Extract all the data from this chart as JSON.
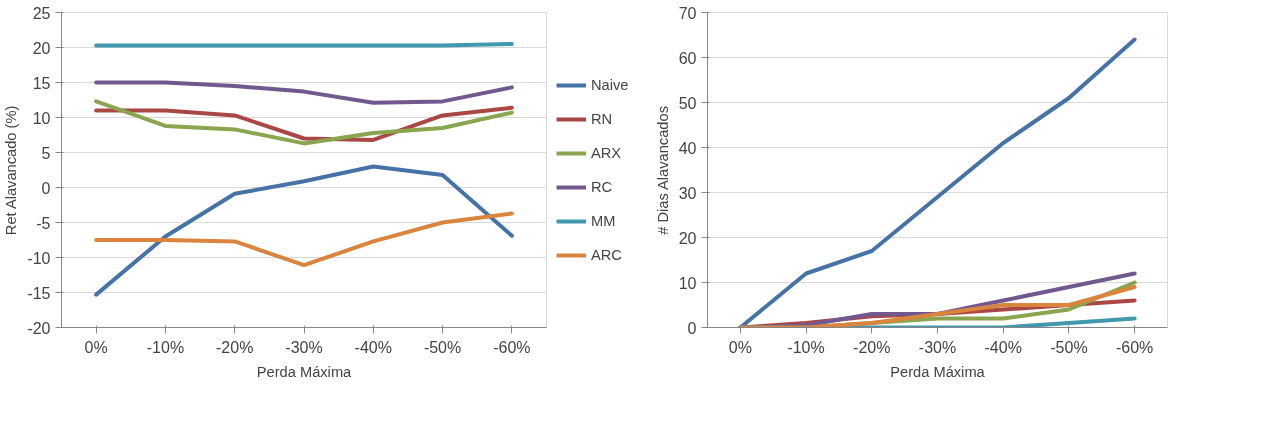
{
  "chart_data": [
    {
      "type": "line",
      "xlabel": "Perda Máxima",
      "ylabel": "Ret Alavancado (%)",
      "categories": [
        "0%",
        "-10%",
        "-20%",
        "-30%",
        "-40%",
        "-50%",
        "-60%"
      ],
      "ylim": [
        -20,
        25
      ],
      "yticks": [
        -20,
        -15,
        -10,
        -5,
        0,
        5,
        10,
        15,
        20,
        25
      ],
      "grid": "y",
      "legend": "right",
      "series": [
        {
          "name": "Naive",
          "color": "#4572a7",
          "values": [
            -15.3,
            -7,
            -0.9,
            0.9,
            3,
            1.8,
            -6.9
          ]
        },
        {
          "name": "RN",
          "color": "#aa4643",
          "values": [
            11,
            11,
            10.3,
            7,
            6.8,
            10.3,
            11.4
          ]
        },
        {
          "name": "ARX",
          "color": "#89a54e",
          "values": [
            12.3,
            8.8,
            8.3,
            6.3,
            7.8,
            8.5,
            10.7
          ]
        },
        {
          "name": "RC",
          "color": "#71588f",
          "values": [
            15,
            15,
            14.5,
            13.7,
            12.1,
            12.3,
            14.3
          ]
        },
        {
          "name": "MM",
          "color": "#4198af",
          "values": [
            20.3,
            20.3,
            20.3,
            20.3,
            20.3,
            20.3,
            20.5
          ]
        },
        {
          "name": "ARC",
          "color": "#db843d",
          "values": [
            -7.5,
            -7.5,
            -7.7,
            -11.1,
            -7.7,
            -5,
            -3.7
          ]
        }
      ]
    },
    {
      "type": "line",
      "xlabel": "Perda Máxima",
      "ylabel": "# Dias Alavancados",
      "categories": [
        "0%",
        "-10%",
        "-20%",
        "-30%",
        "-40%",
        "-50%",
        "-60%"
      ],
      "ylim": [
        0,
        70
      ],
      "yticks": [
        0,
        10,
        20,
        30,
        40,
        50,
        60,
        70
      ],
      "grid": "y",
      "series": [
        {
          "color": "#4572a7",
          "values": [
            0,
            12,
            17,
            29,
            41,
            51,
            64
          ]
        },
        {
          "color": "#aa4643",
          "values": [
            0,
            1,
            2.5,
            3,
            4,
            5,
            6
          ]
        },
        {
          "color": "#89a54e",
          "values": [
            0,
            0,
            1,
            2,
            2,
            4,
            10
          ]
        },
        {
          "color": "#71588f",
          "values": [
            0,
            0.5,
            3,
            3,
            6,
            9,
            12
          ]
        },
        {
          "color": "#4198af",
          "values": [
            0,
            0,
            0,
            0,
            0,
            1,
            2
          ]
        },
        {
          "color": "#db843d",
          "values": [
            0,
            0,
            1,
            3,
            5,
            5,
            9
          ]
        }
      ]
    }
  ]
}
